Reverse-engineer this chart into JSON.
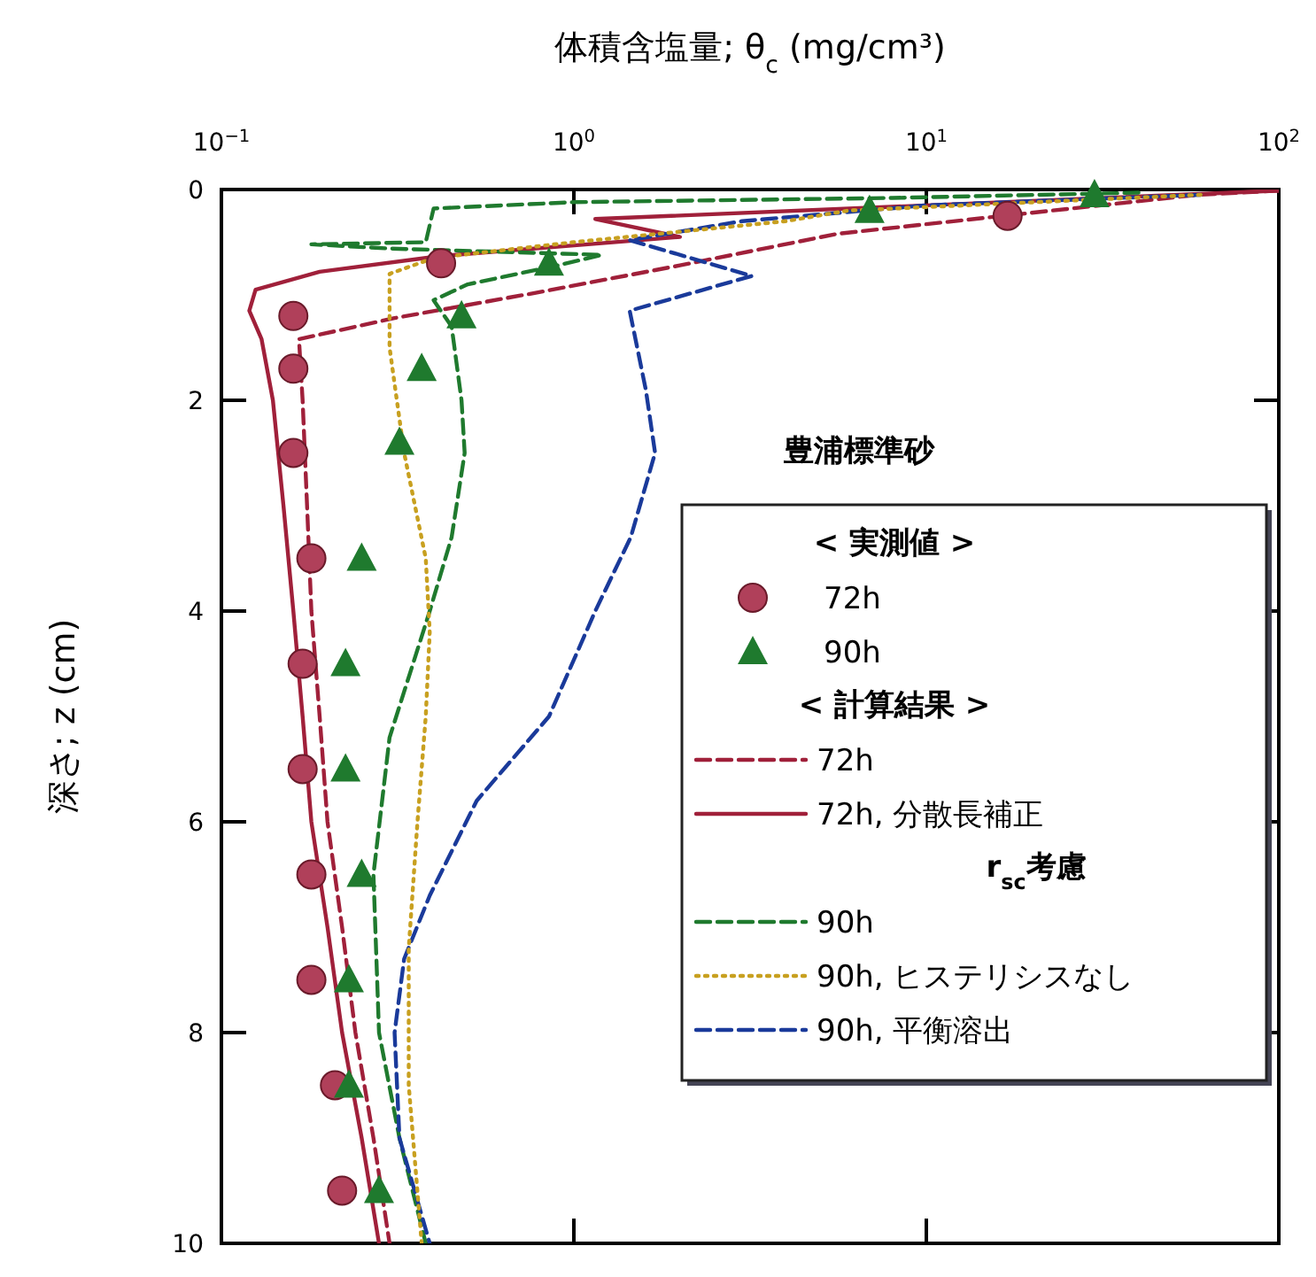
{
  "chart_data": {
    "type": "scatter",
    "xlabel": "体積含塩量; θ$_{c}$ (mg/cm³)",
    "ylabel": "深さ; z (cm)",
    "log": "x",
    "xlim": [
      0.1,
      100
    ],
    "ylim": [
      10,
      0
    ],
    "xticks": [
      {
        "value": 0.1,
        "label": "10$^{−1}$"
      },
      {
        "value": 1,
        "label": "10$^{0}$"
      },
      {
        "value": 10,
        "label": "10$^{1}$"
      },
      {
        "value": 100,
        "label": "10$^{2}$"
      }
    ],
    "yticks": [
      0,
      2,
      4,
      6,
      8,
      10
    ],
    "grid": false,
    "legend": "bottom right",
    "annotations": [
      "豊浦標準砂",
      "< 実測値 >",
      "< 計算結果 >",
      "r$_{sc}$考慮"
    ],
    "series": [
      {
        "name": "72h",
        "type": "scatter",
        "marker": "circle",
        "color": "#b0405a",
        "x": [
          17,
          0.42,
          0.16,
          0.16,
          0.16,
          0.18,
          0.17,
          0.17,
          0.18,
          0.18,
          0.21,
          0.22
        ],
        "values": [
          0.25,
          0.7,
          1.2,
          1.7,
          2.5,
          3.5,
          4.5,
          5.5,
          6.5,
          7.5,
          8.5,
          9.5
        ]
      },
      {
        "name": "90h",
        "type": "scatter",
        "marker": "triangle",
        "color": "#1f7a2e",
        "x": [
          30,
          6.9,
          0.85,
          0.48,
          0.37,
          0.32,
          0.25,
          0.225,
          0.225,
          0.25,
          0.23,
          0.23,
          0.28
        ],
        "values": [
          0.05,
          0.2,
          0.7,
          1.2,
          1.7,
          2.4,
          3.5,
          4.5,
          5.5,
          6.5,
          7.5,
          8.5,
          9.5
        ]
      },
      {
        "name": "72h",
        "type": "line",
        "line_style": "dashed",
        "color": "#a0203a",
        "x": [
          100,
          59,
          5.6,
          2.0,
          0.78,
          0.31,
          0.166,
          0.17,
          0.175,
          0.18,
          0.19,
          0.2,
          0.22,
          0.24,
          0.27,
          0.3
        ],
        "values": [
          0.01,
          0.05,
          0.42,
          0.72,
          0.98,
          1.22,
          1.42,
          2,
          3,
          4,
          5,
          6,
          7,
          8,
          9,
          10
        ]
      },
      {
        "name": "72h, 分散長補正",
        "type": "line",
        "line_style": "solid",
        "color": "#a0203a",
        "x": [
          100,
          10,
          1.15,
          2.0,
          0.42,
          0.19,
          0.125,
          0.12,
          0.13,
          0.14,
          0.15,
          0.16,
          0.17,
          0.18,
          0.2,
          0.22,
          0.25,
          0.28
        ],
        "values": [
          0.01,
          0.15,
          0.28,
          0.45,
          0.63,
          0.78,
          0.95,
          1.15,
          1.42,
          2,
          3,
          4,
          5,
          6,
          7,
          8,
          9,
          10
        ]
      },
      {
        "name": "90h",
        "type": "line",
        "line_style": "dashed",
        "color": "#1f7a2e",
        "x": [
          40,
          8,
          1,
          0.4,
          0.38,
          0.18,
          0.3,
          1.2,
          0.9,
          0.5,
          0.4,
          0.45,
          0.48,
          0.49,
          0.45,
          0.39,
          0.3,
          0.27,
          0.28,
          0.32,
          0.38
        ],
        "values": [
          0.03,
          0.08,
          0.12,
          0.18,
          0.5,
          0.52,
          0.56,
          0.62,
          0.72,
          0.9,
          1.05,
          1.3,
          2,
          2.5,
          3.3,
          4,
          5.2,
          6.5,
          8,
          9,
          10
        ]
      },
      {
        "name": "90h, ヒステリシスなし",
        "type": "line",
        "line_style": "dotted",
        "color": "#c8a020",
        "x": [
          60,
          6,
          4,
          1,
          0.4,
          0.3,
          0.3,
          0.33,
          0.38,
          0.39,
          0.38,
          0.36,
          0.34,
          0.34,
          0.37
        ],
        "values": [
          0.05,
          0.2,
          0.3,
          0.5,
          0.65,
          0.8,
          1.5,
          2.5,
          3.5,
          4.2,
          5,
          6,
          7.2,
          8.5,
          10
        ]
      },
      {
        "name": "90h, 平衡溶出",
        "type": "line",
        "line_style": "dashed",
        "color": "#1a3a9a",
        "x": [
          60,
          10,
          3,
          1.44,
          3.2,
          1.44,
          1.6,
          1.7,
          1.45,
          1.15,
          0.85,
          0.53,
          0.39,
          0.33,
          0.31,
          0.32,
          0.39
        ],
        "values": [
          0.05,
          0.15,
          0.3,
          0.48,
          0.82,
          1.15,
          1.9,
          2.5,
          3.3,
          4,
          5,
          5.8,
          6.7,
          7.3,
          8,
          9,
          10
        ]
      }
    ]
  }
}
